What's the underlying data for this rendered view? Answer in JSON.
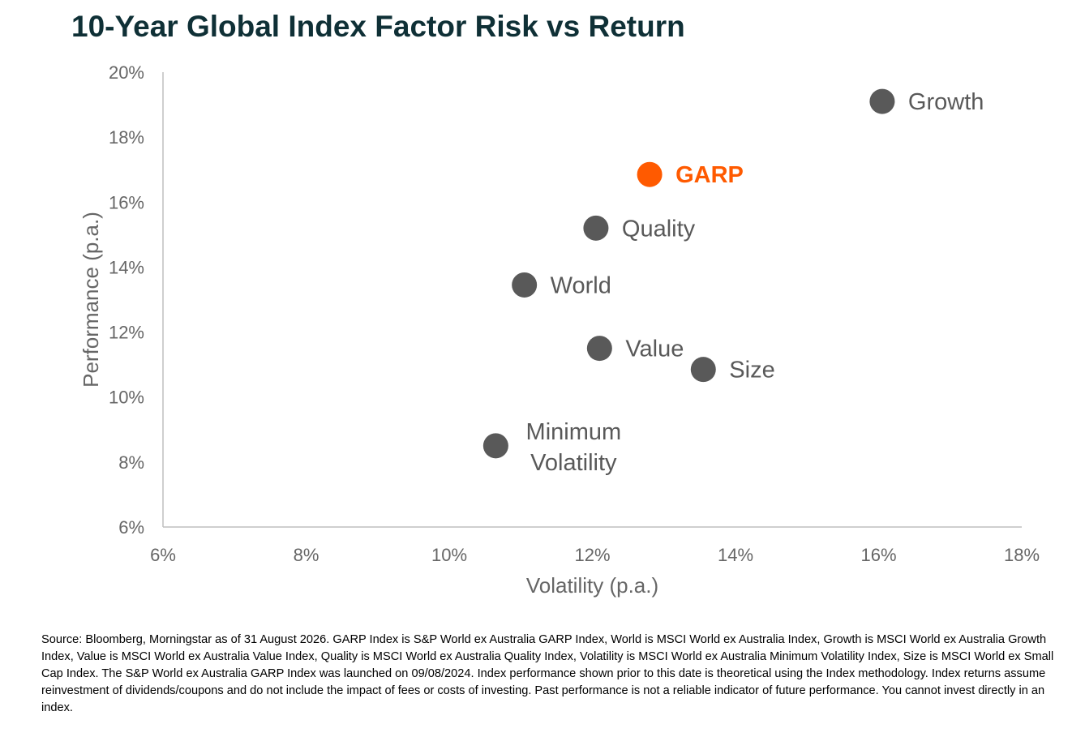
{
  "title": "10-Year Global Index Factor Risk vs Return",
  "source_note": "Source: Bloomberg, Morningstar as of 31 August 2026. GARP Index is S&P World ex Australia GARP Index, World is MSCI World ex Australia Index, Growth is MSCI World ex Australia Growth Index, Value is MSCI World ex Australia Value Index, Quality is MSCI World ex Australia Quality Index, Volatility is MSCI World ex Australia Minimum Volatility Index, Size is MSCI World ex Small Cap Index. The S&P World ex Australia GARP Index was launched on 09/08/2024. Index performance shown prior to this date is theoretical using the Index methodology. Index returns assume reinvestment of dividends/coupons and do not include the impact of fees or costs of investing. Past performance is not a reliable indicator of future performance. You cannot invest directly in an index.",
  "colors": {
    "title": "#0f3036",
    "point": "#595959",
    "highlight": "#ff5a00",
    "axis": "#bfbfbf",
    "tick": "#666666"
  },
  "chart_data": {
    "type": "scatter",
    "title": "10-Year Global Index Factor Risk vs Return",
    "xlabel": "Volatility (p.a.)",
    "ylabel": "Performance (p.a.)",
    "xlim": [
      6,
      18
    ],
    "ylim": [
      6,
      20
    ],
    "xticks": [
      6,
      8,
      10,
      12,
      14,
      16,
      18
    ],
    "yticks": [
      6,
      8,
      10,
      12,
      14,
      16,
      18,
      20
    ],
    "xtick_labels": [
      "6%",
      "8%",
      "10%",
      "12%",
      "14%",
      "16%",
      "18%"
    ],
    "ytick_labels": [
      "6%",
      "8%",
      "10%",
      "12%",
      "14%",
      "16%",
      "18%",
      "20%"
    ],
    "grid": false,
    "points": [
      {
        "label": "Growth",
        "x": 16.05,
        "y": 19.1,
        "highlight": false
      },
      {
        "label": "GARP",
        "x": 12.8,
        "y": 16.85,
        "highlight": true
      },
      {
        "label": "Quality",
        "x": 12.05,
        "y": 15.2,
        "highlight": false
      },
      {
        "label": "World",
        "x": 11.05,
        "y": 13.45,
        "highlight": false
      },
      {
        "label": "Value",
        "x": 12.1,
        "y": 11.5,
        "highlight": false
      },
      {
        "label": "Size",
        "x": 13.55,
        "y": 10.85,
        "highlight": false
      },
      {
        "label": "Minimum Volatility",
        "x": 10.65,
        "y": 8.5,
        "highlight": false
      }
    ]
  }
}
